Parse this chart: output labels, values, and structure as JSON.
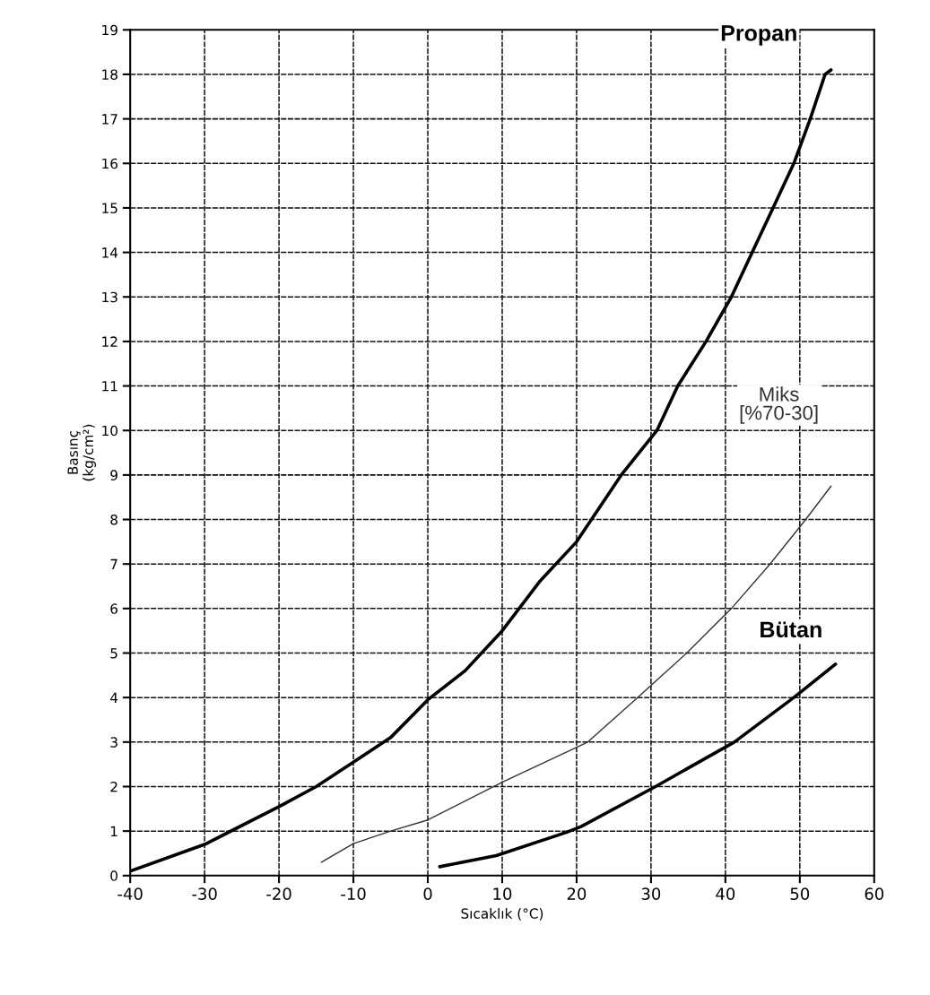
{
  "chart_data": {
    "type": "line",
    "xlabel": "Sıcaklık (°C)",
    "ylabel": "Basınç\n(kg/cm²)",
    "xlim": [
      -40,
      60
    ],
    "xticks": [
      -40,
      -30,
      -20,
      -10,
      0,
      10,
      20,
      30,
      40,
      50,
      60
    ],
    "ylim": [
      0,
      19
    ],
    "yticks": [
      0,
      1,
      2,
      3,
      4,
      5,
      6,
      7,
      8,
      9,
      10,
      11,
      12,
      13,
      14,
      15,
      16,
      17,
      18,
      19
    ],
    "grid": true,
    "legend": false,
    "marker": "none",
    "line_style": "solid",
    "series": [
      {
        "name": "Propan",
        "color": "#000000",
        "x": [
          -40,
          -30,
          -20,
          -15,
          -10,
          -5,
          0,
          5,
          10,
          15,
          20,
          22,
          26,
          30.8,
          33.6,
          37.4,
          40.8,
          43.6,
          46.4,
          49.2,
          51.4,
          53.4,
          54.2
        ],
        "values": [
          0.1,
          0.7,
          1.55,
          2.0,
          2.55,
          3.1,
          3.95,
          4.6,
          5.5,
          6.6,
          7.5,
          8,
          9,
          10,
          11,
          12,
          13,
          14,
          15,
          16,
          17,
          18,
          18.1
        ]
      },
      {
        "name": "Miks\n[%70-30]",
        "color": "#333333",
        "x": [
          -14.3,
          -10,
          -5,
          0,
          10,
          21.5,
          28.2,
          34.8,
          40.8,
          46,
          50.8,
          54.2
        ],
        "values": [
          0.3,
          0.72,
          1.0,
          1.25,
          2.1,
          3,
          4,
          5,
          6,
          7,
          8,
          8.75
        ]
      },
      {
        "name": "Bütan",
        "color": "#000000",
        "x": [
          1.6,
          9.2,
          18.6,
          20.6,
          30.6,
          41.2,
          49.2,
          54.8
        ],
        "values": [
          0.2,
          0.45,
          0.97,
          1.1,
          2.0,
          3.0,
          4.0,
          4.75
        ]
      }
    ]
  }
}
